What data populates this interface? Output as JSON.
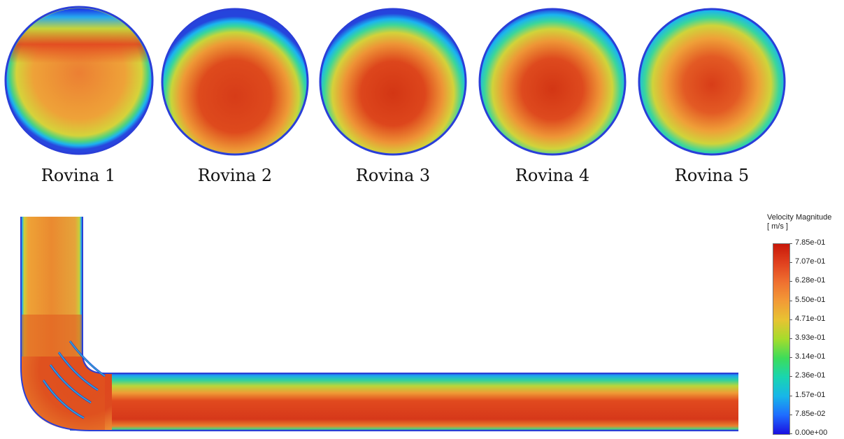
{
  "cross_sections": [
    {
      "label": "Rovina 1"
    },
    {
      "label": "Rovina 2"
    },
    {
      "label": "Rovina 3"
    },
    {
      "label": "Rovina 4"
    },
    {
      "label": "Rovina 5"
    }
  ],
  "legend": {
    "title": "Velocity Magnitude",
    "unit": "[ m/s ]",
    "ticks": [
      "7.85e-01",
      "7.07e-01",
      "6.28e-01",
      "5.50e-01",
      "4.71e-01",
      "3.93e-01",
      "3.14e-01",
      "2.36e-01",
      "1.57e-01",
      "7.85e-02",
      "0.00e+00"
    ],
    "colormap": [
      "#1a0fe0",
      "#1f6dff",
      "#18b6e8",
      "#19d5b0",
      "#3ddc5a",
      "#a5dc2c",
      "#e7c332",
      "#f29a36",
      "#ef7030",
      "#e0411f",
      "#c81809"
    ]
  }
}
